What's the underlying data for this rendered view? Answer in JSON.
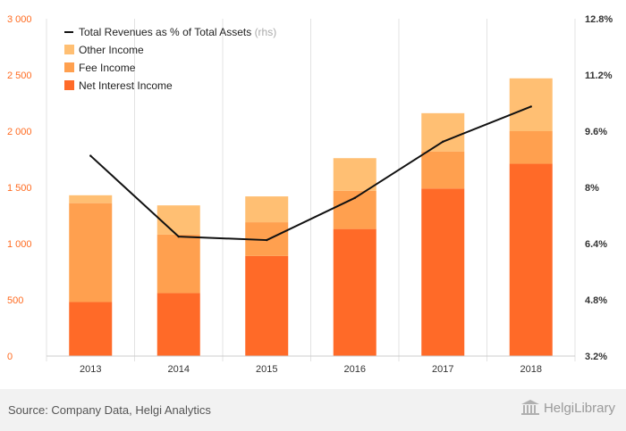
{
  "chart_data": {
    "type": "bar",
    "stacked": true,
    "categories": [
      "2013",
      "2014",
      "2015",
      "2016",
      "2017",
      "2018"
    ],
    "series": [
      {
        "name": "Net Interest Income",
        "values": [
          480,
          560,
          890,
          1130,
          1490,
          1710
        ],
        "color": "#ff6a28"
      },
      {
        "name": "Fee Income",
        "values": [
          880,
          520,
          300,
          340,
          330,
          290
        ],
        "color": "#ffa04f"
      },
      {
        "name": "Other Income",
        "values": [
          70,
          260,
          230,
          290,
          340,
          470
        ],
        "color": "#ffbf73"
      }
    ],
    "line_series": {
      "name": "Total Revenues as % of Total Assets",
      "note": "(rhs)",
      "values": [
        8.9,
        6.6,
        6.5,
        7.7,
        9.3,
        10.3
      ],
      "color": "#111111",
      "axis": "right"
    },
    "ylim_left": [
      0,
      3000
    ],
    "yticks_left": [
      "0",
      "500",
      "1 000",
      "1 500",
      "2 000",
      "2 500",
      "3 000"
    ],
    "ylim_right": [
      3.2,
      12.8
    ],
    "yticks_right": [
      "3.2%",
      "4.8%",
      "6.4%",
      "8%",
      "9.6%",
      "11.2%",
      "12.8%"
    ],
    "legend_position": "top-left",
    "grid": "vertical-category-separators"
  },
  "footer": {
    "source": "Source: Company Data, Helgi Analytics",
    "logo_text": "HelgiLibrary"
  }
}
